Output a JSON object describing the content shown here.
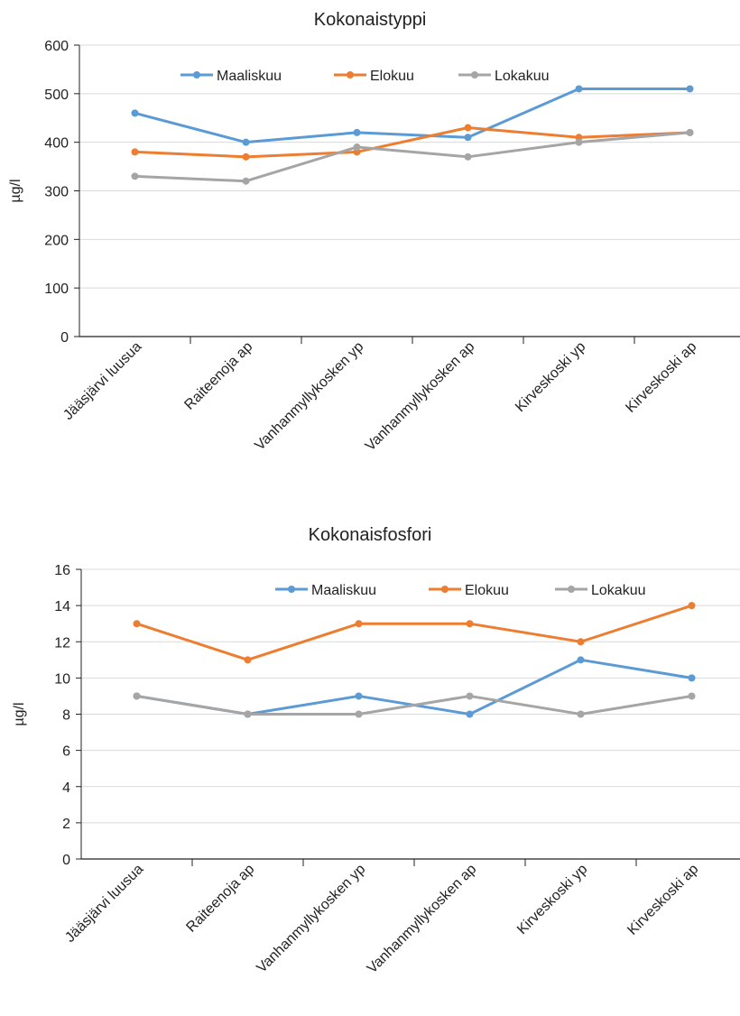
{
  "colors": {
    "Maaliskuu": "#5b9bd5",
    "Elokuu": "#ed7d31",
    "Lokakuu": "#a5a5a5",
    "axis": "#222222",
    "grid": "#d9d9d9"
  },
  "chart_data": [
    {
      "type": "line",
      "title": "Kokonaistyppi",
      "xlabel": "",
      "ylabel": "µg/l",
      "ylim": [
        0,
        600
      ],
      "yticks": [
        0,
        100,
        200,
        300,
        400,
        500,
        600
      ],
      "grid": true,
      "legend": "top",
      "categories": [
        "Jääsjärvi luusua",
        "Raiteenoja ap",
        "Vanhanmyllykosken yp",
        "Vanhanmyllykosken ap",
        "Kirveskoski yp",
        "Kirveskoski ap"
      ],
      "series": [
        {
          "name": "Maaliskuu",
          "values": [
            460,
            400,
            420,
            410,
            510,
            510
          ]
        },
        {
          "name": "Elokuu",
          "values": [
            380,
            370,
            380,
            430,
            410,
            420
          ]
        },
        {
          "name": "Lokakuu",
          "values": [
            330,
            320,
            390,
            370,
            400,
            420
          ]
        }
      ]
    },
    {
      "type": "line",
      "title": "Kokonaisfosfori",
      "xlabel": "",
      "ylabel": "µg/l",
      "ylim": [
        0,
        16
      ],
      "yticks": [
        0,
        2,
        4,
        6,
        8,
        10,
        12,
        14,
        16
      ],
      "grid": true,
      "legend": "top",
      "categories": [
        "Jääsjärvi luusua",
        "Raiteenoja ap",
        "Vanhanmyllykosken yp",
        "Vanhanmyllykosken ap",
        "Kirveskoski yp",
        "Kirveskoski ap"
      ],
      "series": [
        {
          "name": "Maaliskuu",
          "values": [
            9,
            8,
            9,
            8,
            11,
            10
          ]
        },
        {
          "name": "Elokuu",
          "values": [
            13,
            11,
            13,
            13,
            12,
            14
          ]
        },
        {
          "name": "Lokakuu",
          "values": [
            9,
            8,
            8,
            9,
            8,
            9
          ]
        }
      ]
    }
  ]
}
